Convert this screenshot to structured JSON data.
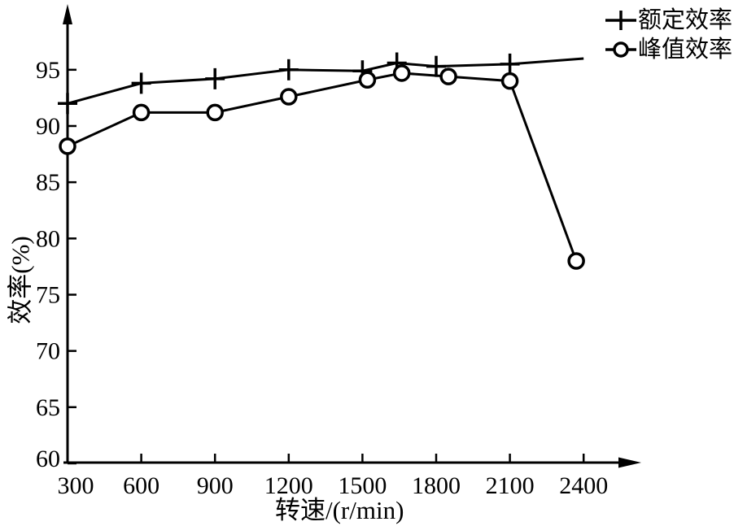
{
  "figure": {
    "background": "#ffffff",
    "ink_color": "#000000"
  },
  "chart_data": {
    "type": "line",
    "title": "",
    "xlabel": "转速/(r/min)",
    "ylabel": "效率(%)",
    "xlim": [
      300,
      2600
    ],
    "ylim": [
      60,
      97
    ],
    "xticks": [
      300,
      600,
      900,
      1200,
      1500,
      1800,
      2100,
      2400
    ],
    "yticks": [
      60,
      65,
      70,
      75,
      80,
      85,
      90,
      95
    ],
    "grid": false,
    "legend_position": "top-right",
    "series": [
      {
        "name": "额定效率",
        "marker": "plus",
        "points": [
          [
            300,
            92.0
          ],
          [
            600,
            93.8
          ],
          [
            900,
            94.2
          ],
          [
            1200,
            95.0
          ],
          [
            1500,
            94.9
          ],
          [
            1640,
            95.6
          ],
          [
            1800,
            95.3
          ],
          [
            2100,
            95.5
          ]
        ],
        "line_end": [
          2400,
          96.0
        ]
      },
      {
        "name": "峰值效率",
        "marker": "circle",
        "points": [
          [
            300,
            88.2
          ],
          [
            600,
            91.2
          ],
          [
            900,
            91.2
          ],
          [
            1200,
            92.6
          ],
          [
            1520,
            94.1
          ],
          [
            1660,
            94.7
          ],
          [
            1850,
            94.4
          ],
          [
            2100,
            94.0
          ],
          [
            2370,
            78.0
          ]
        ]
      }
    ]
  },
  "legend": {
    "items": [
      {
        "label": "额定效率",
        "marker": "plus"
      },
      {
        "label": "峰值效率",
        "marker": "circle"
      }
    ]
  }
}
